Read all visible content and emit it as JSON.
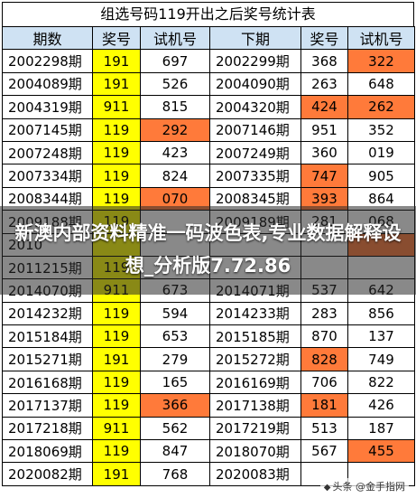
{
  "title": "组选号码119开出之后奖号统计表",
  "headers": [
    "期数",
    "奖号",
    "试机号",
    "下期",
    "奖号",
    "试机号"
  ],
  "rows": [
    {
      "p1": "2002298期",
      "a1": "191",
      "t1": "697",
      "p2": "2002299期",
      "a2": "368",
      "t2": "322",
      "h": [
        1,
        5
      ]
    },
    {
      "p1": "2004089期",
      "a1": "191",
      "t1": "526",
      "p2": "2004090期",
      "a2": "263",
      "t2": "648",
      "h": [
        1
      ]
    },
    {
      "p1": "2004319期",
      "a1": "911",
      "t1": "815",
      "p2": "2004320期",
      "a2": "424",
      "t2": "262",
      "h": [
        1,
        4,
        5
      ]
    },
    {
      "p1": "2007145期",
      "a1": "119",
      "t1": "292",
      "p2": "2007146期",
      "a2": "951",
      "t2": "352",
      "h": [
        1,
        2
      ]
    },
    {
      "p1": "2007248期",
      "a1": "119",
      "t1": "423",
      "p2": "2007249期",
      "a2": "360",
      "t2": "019",
      "h": [
        1
      ]
    },
    {
      "p1": "2007334期",
      "a1": "119",
      "t1": "824",
      "p2": "2007335期",
      "a2": "747",
      "t2": "905",
      "h": [
        1,
        4
      ]
    },
    {
      "p1": "2008344期",
      "a1": "119",
      "t1": "070",
      "p2": "2008345期",
      "a2": "393",
      "t2": "864",
      "h": [
        1,
        2,
        4
      ]
    },
    {
      "p1": "2009188期",
      "a1": "119",
      "t1": "",
      "p2": "2009189期",
      "a2": "281",
      "t2": "068",
      "h": [
        1
      ]
    },
    {
      "p1": "2010",
      "a1": "",
      "t1": "",
      "p2": "",
      "a2": "",
      "t2": "",
      "h": [
        1,
        5
      ]
    },
    {
      "p1": "2011215期",
      "a1": "119",
      "t1": "",
      "p2": "",
      "a2": "",
      "t2": "",
      "h": [
        1
      ]
    },
    {
      "p1": "2014070期",
      "a1": "911",
      "t1": "673",
      "p2": "2014071期",
      "a2": "537",
      "t2": "642",
      "h": [
        1
      ]
    },
    {
      "p1": "2014232期",
      "a1": "119",
      "t1": "594",
      "p2": "2014233期",
      "a2": "283",
      "t2": "856",
      "h": [
        1
      ]
    },
    {
      "p1": "2015184期",
      "a1": "119",
      "t1": "653",
      "p2": "2015185期",
      "a2": "870",
      "t2": "137",
      "h": [
        1
      ]
    },
    {
      "p1": "2015271期",
      "a1": "191",
      "t1": "279",
      "p2": "2015272期",
      "a2": "828",
      "t2": "749",
      "h": [
        1,
        4
      ]
    },
    {
      "p1": "2016168期",
      "a1": "119",
      "t1": "165",
      "p2": "2016169期",
      "a2": "706",
      "t2": "822",
      "h": [
        1
      ]
    },
    {
      "p1": "2017137期",
      "a1": "119",
      "t1": "366",
      "p2": "2017138期",
      "a2": "181",
      "t2": "426",
      "h": [
        1,
        2,
        4
      ]
    },
    {
      "p1": "2017218期",
      "a1": "911",
      "t1": "562",
      "p2": "2017219期",
      "a2": "513",
      "t2": "187",
      "h": [
        1
      ]
    },
    {
      "p1": "2018069期",
      "a1": "119",
      "t1": "847",
      "p2": "2018070期",
      "a2": "567",
      "t2": "455",
      "h": [
        1,
        5
      ]
    },
    {
      "p1": "2020082期",
      "a1": "191",
      "t1": "768",
      "p2": "2020083期",
      "a2": "",
      "t2": "",
      "h": [
        1
      ]
    }
  ],
  "overlay_text": "新澳内部资料精准一码波色表,专业数据解释设想_分析版7.72.86",
  "watermark": "头条 @金手指网"
}
